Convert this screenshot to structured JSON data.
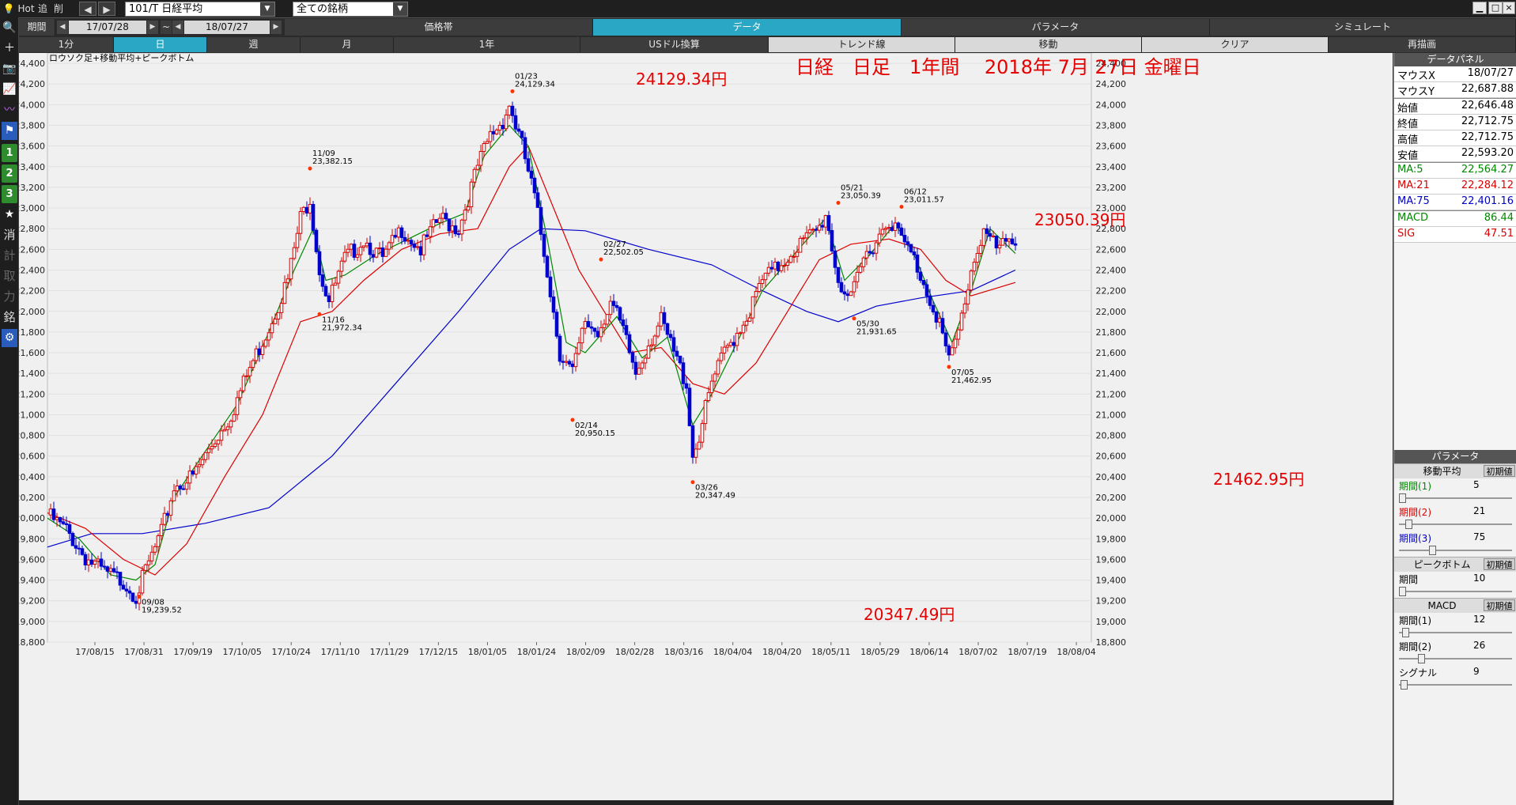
{
  "topbar": {
    "hot": "Hot",
    "tab2": "追",
    "tab3": "削",
    "symbol": "101/T 日経平均",
    "filter": "全ての銘柄"
  },
  "row2": {
    "period_label": "期間",
    "date_from": "17/07/28",
    "tilde": "~",
    "date_to": "18/07/27",
    "tabs": [
      "価格帯",
      "データ",
      "パラメータ",
      "シミュレート"
    ]
  },
  "row3": {
    "timeframes": [
      "1分",
      "日",
      "週",
      "月",
      "1年"
    ],
    "tools": [
      "USドル換算",
      "トレンド線",
      "移動",
      "クリア",
      "再描画"
    ]
  },
  "chart": {
    "label": "ロウソク足+移動平均+ピークボトム",
    "title": "日経　日足　1年間　 2018年 7月 27日 金曜日",
    "big_annotations": [
      "24129.34円",
      "23050.39円",
      "20347.49円",
      "21462.95円"
    ],
    "colors": {
      "up": "#d40000",
      "down": "#0000cc",
      "ma5": "#008800",
      "ma21": "#dd0000",
      "ma75": "#0000cc",
      "annotation": "#e60000"
    }
  },
  "chart_data": {
    "type": "candlestick",
    "ylim": [
      18800,
      24500
    ],
    "y_ticks": [
      "24,400",
      "24,200",
      "24,000",
      "23,800",
      "23,600",
      "23,400",
      "23,200",
      "23,000",
      "22,800",
      "22,600",
      "22,400",
      "22,200",
      "22,000",
      "21,800",
      "21,600",
      "21,400",
      "21,200",
      "21,000",
      "20,800",
      "20,600",
      "20,400",
      "20,200",
      "20,000",
      "19,800",
      "19,600",
      "19,400",
      "19,200",
      "19,000",
      "18,800"
    ],
    "x_ticks": [
      "17/08/15",
      "17/08/31",
      "17/09/19",
      "17/10/05",
      "17/10/24",
      "17/11/10",
      "17/11/29",
      "17/12/15",
      "18/01/05",
      "18/01/24",
      "18/02/09",
      "18/02/28",
      "18/03/16",
      "18/04/04",
      "18/04/20",
      "18/05/11",
      "18/05/29",
      "18/06/14",
      "18/07/02",
      "18/07/19",
      "18/08/04"
    ],
    "peaks": [
      {
        "date": "09/08",
        "value": "19,239.52"
      },
      {
        "date": "11/09",
        "value": "23,382.15"
      },
      {
        "date": "11/16",
        "value": "21,972.34"
      },
      {
        "date": "01/23",
        "value": "24,129.34"
      },
      {
        "date": "02/14",
        "value": "20,950.15"
      },
      {
        "date": "02/27",
        "value": "22,502.05"
      },
      {
        "date": "03/26",
        "value": "20,347.49"
      },
      {
        "date": "05/21",
        "value": "23,050.39"
      },
      {
        "date": "05/30",
        "value": "21,931.65"
      },
      {
        "date": "06/12",
        "value": "23,011.57"
      },
      {
        "date": "07/05",
        "value": "21,462.95"
      }
    ],
    "close_path": [
      [
        0,
        20030
      ],
      [
        6,
        19880
      ],
      [
        12,
        19620
      ],
      [
        18,
        19470
      ],
      [
        24,
        19390
      ],
      [
        28,
        19250
      ],
      [
        32,
        19560
      ],
      [
        36,
        19850
      ],
      [
        40,
        20300
      ],
      [
        46,
        20400
      ],
      [
        52,
        20710
      ],
      [
        58,
        21000
      ],
      [
        64,
        21450
      ],
      [
        70,
        21850
      ],
      [
        76,
        22300
      ],
      [
        80,
        22900
      ],
      [
        83,
        23100
      ],
      [
        86,
        22400
      ],
      [
        89,
        22100
      ],
      [
        94,
        22500
      ],
      [
        100,
        22700
      ],
      [
        106,
        22500
      ],
      [
        112,
        22800
      ],
      [
        118,
        22600
      ],
      [
        124,
        22900
      ],
      [
        130,
        22800
      ],
      [
        136,
        23400
      ],
      [
        140,
        23700
      ],
      [
        144,
        23850
      ],
      [
        146,
        24000
      ],
      [
        150,
        23600
      ],
      [
        154,
        23100
      ],
      [
        158,
        22400
      ],
      [
        162,
        21600
      ],
      [
        166,
        21400
      ],
      [
        170,
        21900
      ],
      [
        174,
        21800
      ],
      [
        178,
        22100
      ],
      [
        182,
        21800
      ],
      [
        186,
        21400
      ],
      [
        190,
        21700
      ],
      [
        194,
        21900
      ],
      [
        198,
        21600
      ],
      [
        202,
        21300
      ],
      [
        204,
        20600
      ],
      [
        206,
        20800
      ],
      [
        210,
        21300
      ],
      [
        214,
        21600
      ],
      [
        218,
        21800
      ],
      [
        222,
        22000
      ],
      [
        226,
        22300
      ],
      [
        230,
        22400
      ],
      [
        236,
        22600
      ],
      [
        240,
        22700
      ],
      [
        244,
        22800
      ],
      [
        246,
        22950
      ],
      [
        250,
        22300
      ],
      [
        254,
        22100
      ],
      [
        258,
        22500
      ],
      [
        262,
        22700
      ],
      [
        266,
        22900
      ],
      [
        270,
        22700
      ],
      [
        274,
        22500
      ],
      [
        278,
        22200
      ],
      [
        282,
        21900
      ],
      [
        285,
        21500
      ],
      [
        288,
        21800
      ],
      [
        292,
        22400
      ],
      [
        296,
        22800
      ],
      [
        300,
        22600
      ],
      [
        304,
        22650
      ],
      [
        306,
        22710
      ]
    ],
    "ma5": [
      [
        0,
        20000
      ],
      [
        10,
        19800
      ],
      [
        20,
        19450
      ],
      [
        28,
        19400
      ],
      [
        34,
        19550
      ],
      [
        40,
        20200
      ],
      [
        50,
        20650
      ],
      [
        60,
        21100
      ],
      [
        70,
        21800
      ],
      [
        78,
        22400
      ],
      [
        84,
        22800
      ],
      [
        88,
        22300
      ],
      [
        94,
        22350
      ],
      [
        104,
        22550
      ],
      [
        114,
        22700
      ],
      [
        124,
        22850
      ],
      [
        132,
        22950
      ],
      [
        138,
        23500
      ],
      [
        146,
        23800
      ],
      [
        152,
        23600
      ],
      [
        158,
        22700
      ],
      [
        164,
        21700
      ],
      [
        170,
        21600
      ],
      [
        180,
        21950
      ],
      [
        188,
        21550
      ],
      [
        196,
        21750
      ],
      [
        204,
        20900
      ],
      [
        210,
        21200
      ],
      [
        218,
        21700
      ],
      [
        226,
        22200
      ],
      [
        236,
        22550
      ],
      [
        246,
        22900
      ],
      [
        252,
        22300
      ],
      [
        260,
        22550
      ],
      [
        268,
        22850
      ],
      [
        274,
        22550
      ],
      [
        280,
        22100
      ],
      [
        286,
        21700
      ],
      [
        292,
        22200
      ],
      [
        298,
        22800
      ],
      [
        306,
        22560
      ]
    ],
    "ma21": [
      [
        0,
        20050
      ],
      [
        12,
        19900
      ],
      [
        24,
        19600
      ],
      [
        34,
        19450
      ],
      [
        44,
        19750
      ],
      [
        56,
        20400
      ],
      [
        68,
        21000
      ],
      [
        80,
        21900
      ],
      [
        90,
        22000
      ],
      [
        100,
        22300
      ],
      [
        112,
        22600
      ],
      [
        124,
        22750
      ],
      [
        136,
        22800
      ],
      [
        146,
        23400
      ],
      [
        152,
        23600
      ],
      [
        160,
        23000
      ],
      [
        168,
        22400
      ],
      [
        176,
        22000
      ],
      [
        184,
        21600
      ],
      [
        194,
        21650
      ],
      [
        204,
        21300
      ],
      [
        214,
        21200
      ],
      [
        224,
        21500
      ],
      [
        236,
        22100
      ],
      [
        244,
        22500
      ],
      [
        254,
        22650
      ],
      [
        266,
        22700
      ],
      [
        276,
        22600
      ],
      [
        284,
        22300
      ],
      [
        292,
        22150
      ],
      [
        306,
        22280
      ]
    ],
    "ma75": [
      [
        0,
        19720
      ],
      [
        14,
        19850
      ],
      [
        30,
        19850
      ],
      [
        50,
        19950
      ],
      [
        70,
        20100
      ],
      [
        90,
        20600
      ],
      [
        110,
        21300
      ],
      [
        130,
        22000
      ],
      [
        146,
        22600
      ],
      [
        156,
        22800
      ],
      [
        170,
        22780
      ],
      [
        190,
        22600
      ],
      [
        210,
        22450
      ],
      [
        226,
        22200
      ],
      [
        240,
        22000
      ],
      [
        250,
        21900
      ],
      [
        262,
        22050
      ],
      [
        276,
        22130
      ],
      [
        292,
        22200
      ],
      [
        306,
        22400
      ]
    ]
  },
  "panel": {
    "data_header": "データパネル",
    "rows": [
      {
        "k": "マウスX",
        "v": "18/07/27"
      },
      {
        "k": "マウスY",
        "v": "22,687.88"
      },
      {
        "k": "始値",
        "v": "22,646.48"
      },
      {
        "k": "終値",
        "v": "22,712.75"
      },
      {
        "k": "高値",
        "v": "22,712.75"
      },
      {
        "k": "安値",
        "v": "22,593.20"
      },
      {
        "k": "MA:5",
        "v": "22,564.27"
      },
      {
        "k": "MA:21",
        "v": "22,284.12"
      },
      {
        "k": "MA:75",
        "v": "22,401.16"
      },
      {
        "k": "MACD",
        "v": "86.44"
      },
      {
        "k": "SIG",
        "v": "47.51"
      }
    ],
    "param_header": "パラメータ",
    "reset": "初期値",
    "ma_title": "移動平均",
    "period1": "期間(1)",
    "period2": "期間(2)",
    "period3": "期間(3)",
    "ma_values": [
      "5",
      "21",
      "75"
    ],
    "pb_title": "ピークボトム",
    "pb_period": "期間",
    "pb_value": "10",
    "macd_title": "MACD",
    "macd_values": [
      "12",
      "26"
    ],
    "signal": "シグナル",
    "signal_value": "9"
  }
}
